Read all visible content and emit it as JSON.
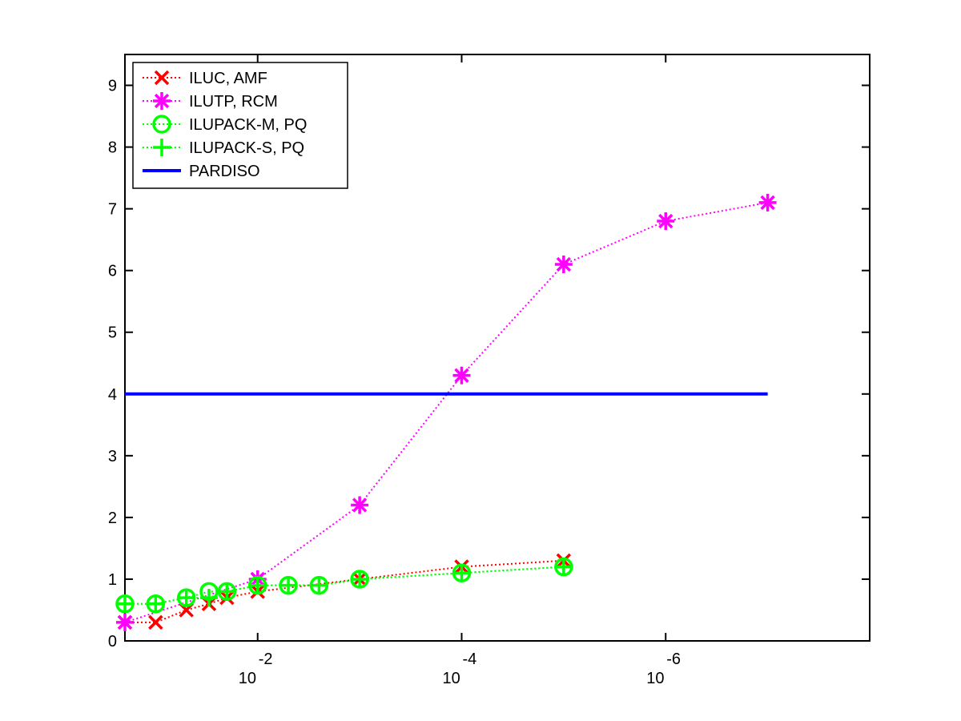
{
  "chart_data": {
    "type": "line",
    "title": "",
    "xlabel": "",
    "ylabel": "",
    "x_scale": "log",
    "x_reversed": true,
    "xlim": [
      0.2,
      1e-08
    ],
    "ylim": [
      0,
      9.5
    ],
    "x_ticks": [
      {
        "value": 0.01,
        "base": "10",
        "exponent": "-2"
      },
      {
        "value": 0.0001,
        "base": "10",
        "exponent": "-4"
      },
      {
        "value": 1e-06,
        "base": "10",
        "exponent": "-6"
      }
    ],
    "y_ticks": [
      "0",
      "1",
      "2",
      "3",
      "4",
      "5",
      "6",
      "7",
      "8",
      "9"
    ],
    "grid": false,
    "legend_position": "top-left",
    "series": [
      {
        "name": "ILUC, AMF",
        "color": "#ff0000",
        "marker": "x-mark",
        "line": "dotted",
        "x": [
          0.2,
          0.1,
          0.05,
          0.03,
          0.02,
          0.01,
          0.001,
          0.0001,
          1e-05
        ],
        "y": [
          0.3,
          0.3,
          0.5,
          0.6,
          0.7,
          0.8,
          1.0,
          1.2,
          1.3
        ]
      },
      {
        "name": "ILUTP, RCM",
        "color": "#ff00ff",
        "marker": "asterisk",
        "line": "dotted",
        "x": [
          0.2,
          0.01,
          0.001,
          0.0001,
          1e-05,
          1e-06,
          1e-07
        ],
        "y": [
          0.3,
          1.0,
          2.2,
          4.3,
          6.1,
          6.8,
          7.1
        ]
      },
      {
        "name": "ILUPACK-M, PQ",
        "color": "#00ff00",
        "marker": "circle",
        "line": "dotted",
        "x": [
          0.2,
          0.1,
          0.05,
          0.03,
          0.02,
          0.01,
          0.005,
          0.0025,
          0.001,
          0.0001,
          1e-05
        ],
        "y": [
          0.6,
          0.6,
          0.7,
          0.8,
          0.8,
          0.9,
          0.9,
          0.9,
          1.0,
          1.1,
          1.2
        ]
      },
      {
        "name": "ILUPACK-S, PQ",
        "color": "#00ff00",
        "marker": "plus",
        "line": "dotted",
        "x": [
          0.2,
          0.1,
          0.05,
          0.03,
          0.02,
          0.01,
          0.005,
          0.0025,
          0.001,
          0.0001,
          1e-05
        ],
        "y": [
          0.6,
          0.6,
          0.7,
          0.7,
          0.8,
          0.9,
          0.9,
          0.9,
          1.0,
          1.1,
          1.2
        ]
      },
      {
        "name": "PARDISO",
        "color": "#0000ff",
        "marker": "none",
        "line": "solid",
        "x": [
          0.2,
          1e-07
        ],
        "y": [
          4.0,
          4.0
        ]
      }
    ]
  }
}
